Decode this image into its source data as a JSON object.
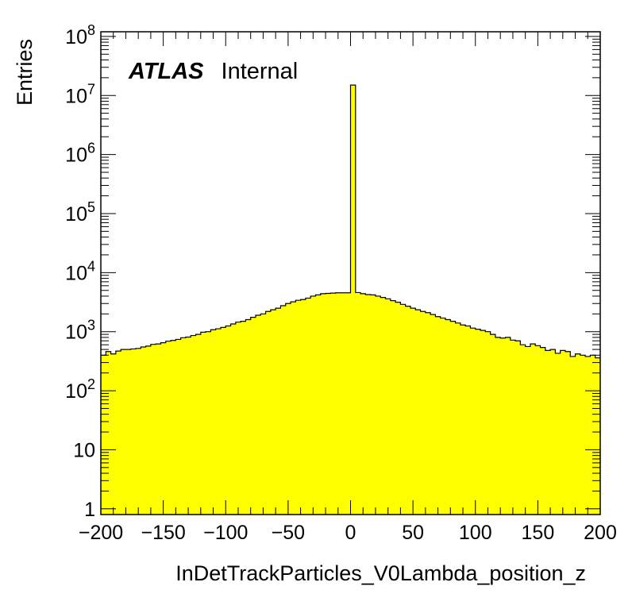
{
  "chart_data": {
    "type": "bar",
    "xlabel": "InDetTrackParticles_V0Lambda_position_z",
    "ylabel": "Entries",
    "label_bold": "ATLAS",
    "label_normal": "Internal",
    "xlim": [
      -200,
      200
    ],
    "ylim_log": [
      0.8,
      120000000
    ],
    "log_y": true,
    "bin_width": 4,
    "x_ticks": [
      {
        "value": -200,
        "label": "−200"
      },
      {
        "value": -150,
        "label": "−150"
      },
      {
        "value": -100,
        "label": "−100"
      },
      {
        "value": -50,
        "label": "−50"
      },
      {
        "value": 0,
        "label": "0"
      },
      {
        "value": 50,
        "label": "50"
      },
      {
        "value": 100,
        "label": "100"
      },
      {
        "value": 150,
        "label": "150"
      },
      {
        "value": 200,
        "label": "200"
      }
    ],
    "y_ticks": [
      {
        "value": 1,
        "base": "1",
        "exp": ""
      },
      {
        "value": 10,
        "base": "10",
        "exp": ""
      },
      {
        "value": 100,
        "base": "10",
        "exp": "2"
      },
      {
        "value": 1000,
        "base": "10",
        "exp": "3"
      },
      {
        "value": 10000,
        "base": "10",
        "exp": "4"
      },
      {
        "value": 100000,
        "base": "10",
        "exp": "5"
      },
      {
        "value": 1000000,
        "base": "10",
        "exp": "6"
      },
      {
        "value": 10000000,
        "base": "10",
        "exp": "7"
      },
      {
        "value": 100000000,
        "base": "10",
        "exp": "8"
      }
    ],
    "fill_color": "#ffff00",
    "line_color": "#000000",
    "bins_left_edges": [
      -200,
      -196,
      -192,
      -188,
      -184,
      -180,
      -176,
      -172,
      -168,
      -164,
      -160,
      -156,
      -152,
      -148,
      -144,
      -140,
      -136,
      -132,
      -128,
      -124,
      -120,
      -116,
      -112,
      -108,
      -104,
      -100,
      -96,
      -92,
      -88,
      -84,
      -80,
      -76,
      -72,
      -68,
      -64,
      -60,
      -56,
      -52,
      -48,
      -44,
      -40,
      -36,
      -32,
      -28,
      -24,
      -20,
      -16,
      -12,
      -8,
      -4,
      0,
      4,
      8,
      12,
      16,
      20,
      24,
      28,
      32,
      36,
      40,
      44,
      48,
      52,
      56,
      60,
      64,
      68,
      72,
      76,
      80,
      84,
      88,
      92,
      96,
      100,
      104,
      108,
      112,
      116,
      120,
      124,
      128,
      132,
      136,
      140,
      144,
      148,
      152,
      156,
      160,
      164,
      168,
      172,
      176,
      180,
      184,
      188,
      192,
      196
    ],
    "values": [
      400,
      460,
      420,
      470,
      500,
      500,
      510,
      520,
      550,
      570,
      610,
      620,
      650,
      690,
      710,
      740,
      790,
      810,
      860,
      900,
      980,
      1000,
      1080,
      1120,
      1180,
      1250,
      1350,
      1450,
      1500,
      1600,
      1750,
      1900,
      2000,
      2200,
      2350,
      2500,
      2750,
      3000,
      3200,
      3400,
      3500,
      3700,
      4000,
      4200,
      4400,
      4450,
      4500,
      4550,
      4550,
      4550,
      15000000,
      4600,
      4400,
      4250,
      4200,
      4000,
      3800,
      3600,
      3350,
      3150,
      2900,
      2700,
      2500,
      2350,
      2200,
      2100,
      1950,
      1800,
      1700,
      1600,
      1500,
      1400,
      1300,
      1250,
      1150,
      1100,
      1050,
      1000,
      900,
      800,
      780,
      800,
      720,
      700,
      600,
      560,
      620,
      580,
      540,
      480,
      500,
      430,
      480,
      460,
      380,
      420,
      400,
      380,
      400,
      360
    ]
  }
}
